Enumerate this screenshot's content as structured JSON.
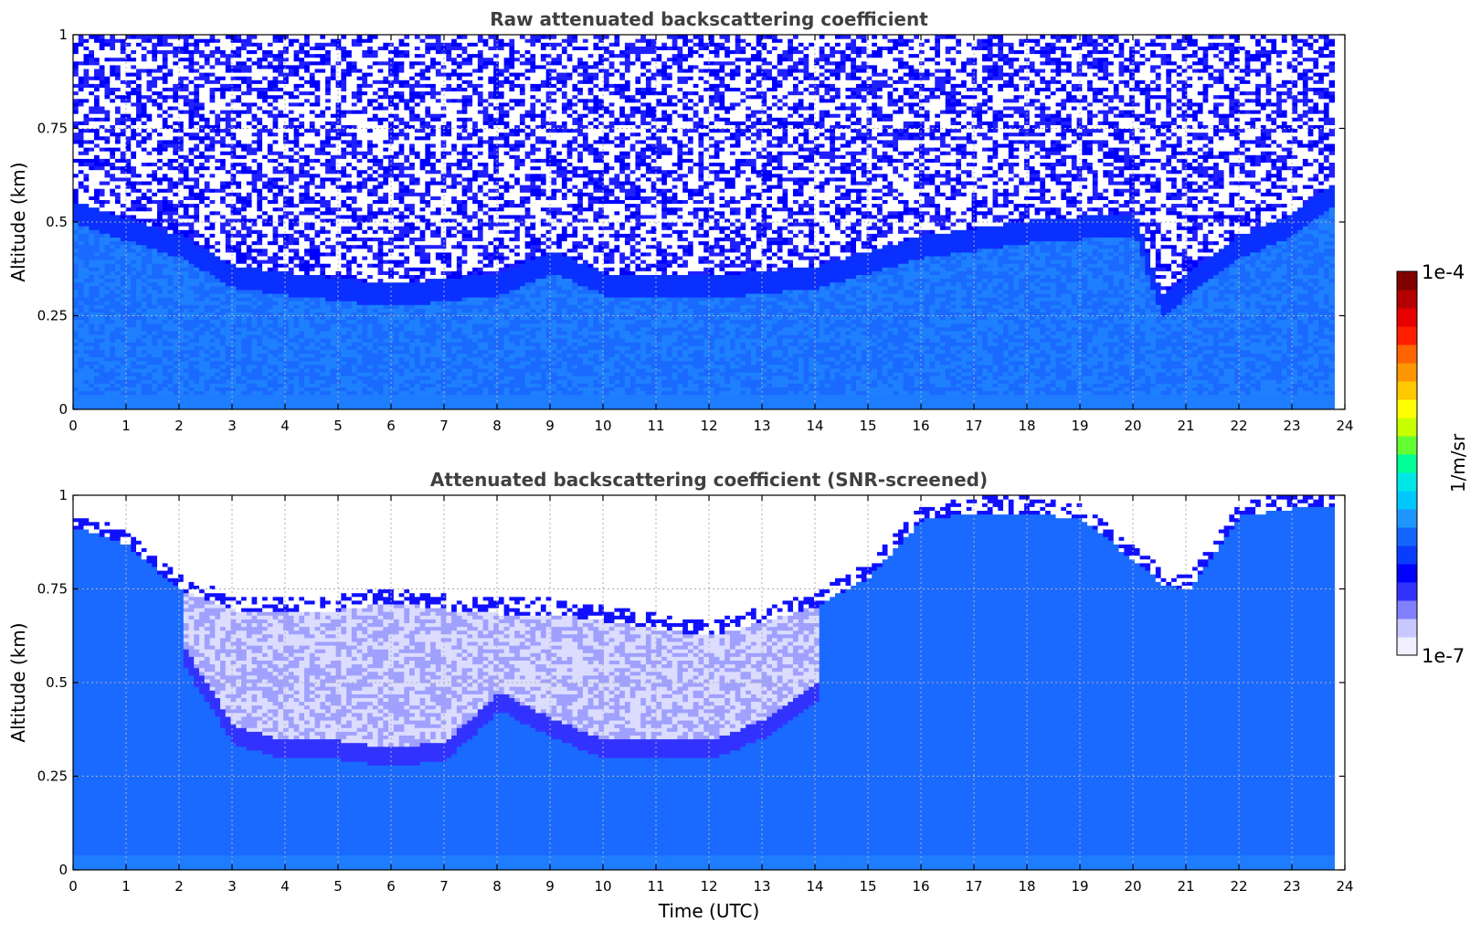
{
  "chart_data": [
    {
      "type": "heatmap",
      "title": "Raw attenuated backscattering coefficient",
      "ylabel": "Altitude (km)",
      "xlabel": "",
      "xlim": [
        0,
        24
      ],
      "ylim": [
        0,
        1
      ],
      "x_ticks": [
        "0",
        "1",
        "2",
        "3",
        "4",
        "5",
        "6",
        "7",
        "8",
        "9",
        "10",
        "11",
        "12",
        "13",
        "14",
        "15",
        "16",
        "17",
        "18",
        "19",
        "20",
        "21",
        "22",
        "23",
        "24"
      ],
      "y_ticks": [
        "0",
        "0.25",
        "0.5",
        "0.75",
        "1"
      ],
      "grid": true,
      "data_end_hour": 23.8,
      "noise_floor_km": [
        [
          0,
          0.55
        ],
        [
          2,
          0.46
        ],
        [
          3,
          0.38
        ],
        [
          4,
          0.36
        ],
        [
          6,
          0.33
        ],
        [
          8,
          0.36
        ],
        [
          9,
          0.42
        ],
        [
          10,
          0.36
        ],
        [
          12,
          0.35
        ],
        [
          14,
          0.38
        ],
        [
          16,
          0.46
        ],
        [
          18,
          0.5
        ],
        [
          20,
          0.52
        ],
        [
          20.5,
          0.3
        ],
        [
          21,
          0.36
        ],
        [
          22,
          0.46
        ],
        [
          23,
          0.52
        ],
        [
          23.8,
          0.6
        ]
      ]
    },
    {
      "type": "heatmap",
      "title": "Attenuated backscattering coefficient (SNR-screened)",
      "ylabel": "Altitude (km)",
      "xlabel": "Time (UTC)",
      "xlim": [
        0,
        24
      ],
      "ylim": [
        0,
        1
      ],
      "x_ticks": [
        "0",
        "1",
        "2",
        "3",
        "4",
        "5",
        "6",
        "7",
        "8",
        "9",
        "10",
        "11",
        "12",
        "13",
        "14",
        "15",
        "16",
        "17",
        "18",
        "19",
        "20",
        "21",
        "22",
        "23",
        "24"
      ],
      "y_ticks": [
        "0",
        "0.25",
        "0.5",
        "0.75",
        "1"
      ],
      "grid": true,
      "data_end_hour": 23.8,
      "screen_top_km": [
        [
          0,
          0.95
        ],
        [
          1,
          0.9
        ],
        [
          2,
          0.78
        ],
        [
          3,
          0.73
        ],
        [
          4,
          0.72
        ],
        [
          5,
          0.73
        ],
        [
          6,
          0.75
        ],
        [
          7,
          0.73
        ],
        [
          8,
          0.72
        ],
        [
          9,
          0.72
        ],
        [
          10,
          0.7
        ],
        [
          11,
          0.68
        ],
        [
          12,
          0.66
        ],
        [
          13,
          0.7
        ],
        [
          14,
          0.74
        ],
        [
          15,
          0.82
        ],
        [
          16,
          0.97
        ],
        [
          17,
          0.99
        ],
        [
          18,
          0.99
        ],
        [
          19,
          0.97
        ],
        [
          20,
          0.86
        ],
        [
          20.5,
          0.8
        ],
        [
          21,
          0.78
        ],
        [
          21.5,
          0.88
        ],
        [
          22,
          0.98
        ],
        [
          23,
          1.0
        ],
        [
          23.8,
          1.0
        ]
      ],
      "layer_base_km": [
        [
          2,
          0.6
        ],
        [
          3,
          0.38
        ],
        [
          4,
          0.34
        ],
        [
          5,
          0.34
        ],
        [
          6,
          0.32
        ],
        [
          7,
          0.34
        ],
        [
          8,
          0.47
        ],
        [
          9,
          0.4
        ],
        [
          10,
          0.34
        ],
        [
          11,
          0.34
        ],
        [
          12,
          0.34
        ],
        [
          13,
          0.4
        ],
        [
          14,
          0.5
        ]
      ]
    }
  ],
  "colorbar": {
    "label": "1/m/sr",
    "max_label": "1e-4",
    "min_label": "1e-7",
    "scale": "log",
    "range": [
      1e-07,
      0.0001
    ],
    "colors": [
      "#f0f0ff",
      "#c8c8ff",
      "#8080ff",
      "#3232ff",
      "#0000ff",
      "#0a3cff",
      "#1464ff",
      "#1e96ff",
      "#00c8ff",
      "#00e6e6",
      "#00ff96",
      "#64ff32",
      "#c8ff00",
      "#ffff00",
      "#ffc800",
      "#ff9600",
      "#ff6400",
      "#ff1e00",
      "#e60000",
      "#b40000",
      "#800000"
    ]
  }
}
